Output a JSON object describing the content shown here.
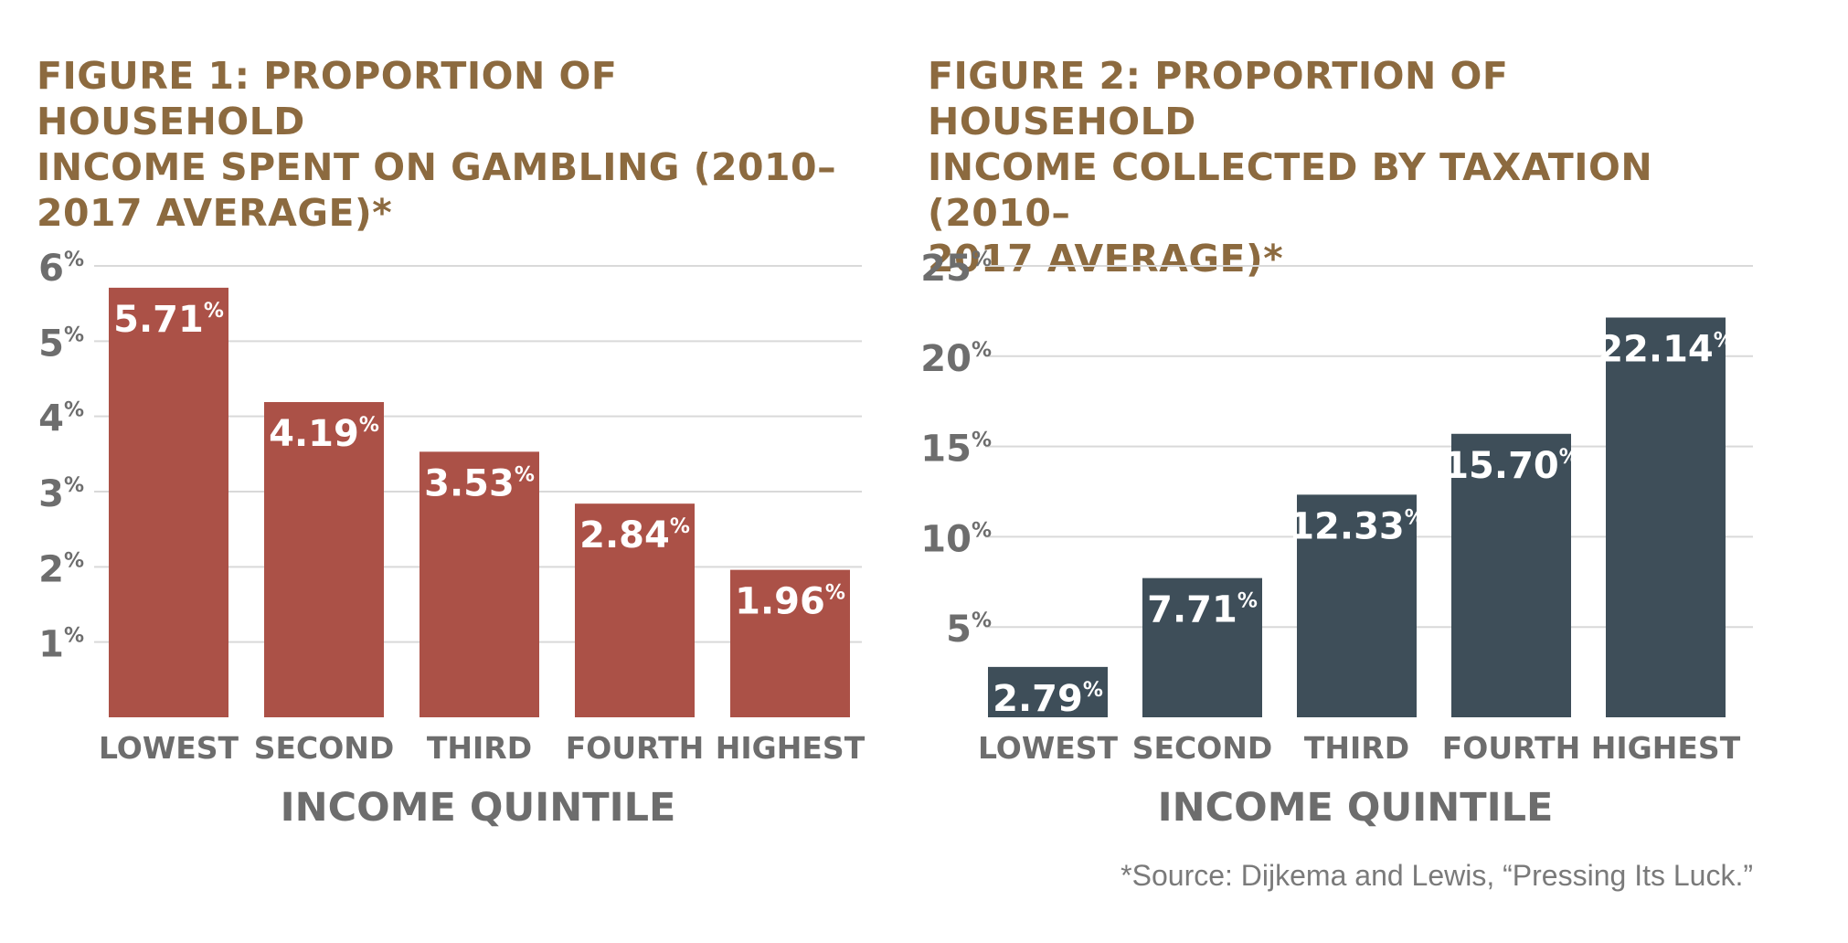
{
  "chart_data": [
    {
      "type": "bar",
      "title": "FIGURE 1: PROPORTION OF HOUSEHOLD\nINCOME SPENT ON GAMBLING (2010–\n2017 AVERAGE)*",
      "xlabel": "INCOME QUINTILE",
      "ylabel": "",
      "categories": [
        "LOWEST",
        "SECOND",
        "THIRD",
        "FOURTH",
        "HIGHEST"
      ],
      "values": [
        5.71,
        4.19,
        3.53,
        2.84,
        1.96
      ],
      "value_labels": [
        "5.71",
        "4.19",
        "3.53",
        "2.84",
        "1.96"
      ],
      "unit": "%",
      "yticks": [
        1,
        2,
        3,
        4,
        5,
        6
      ],
      "ylim": [
        0,
        6
      ],
      "grid": true,
      "bar_color": "#ab5147"
    },
    {
      "type": "bar",
      "title": "FIGURE 2: PROPORTION OF HOUSEHOLD\nINCOME COLLECTED BY TAXATION (2010–\n2017 AVERAGE)*",
      "xlabel": "INCOME QUINTILE",
      "ylabel": "",
      "categories": [
        "LOWEST",
        "SECOND",
        "THIRD",
        "FOURTH",
        "HIGHEST"
      ],
      "values": [
        2.79,
        7.71,
        12.33,
        15.7,
        22.14
      ],
      "value_labels": [
        "2.79",
        "7.71",
        "12.33",
        "15.70",
        "22.14"
      ],
      "unit": "%",
      "yticks": [
        5,
        10,
        15,
        20,
        25
      ],
      "ylim": [
        0,
        25
      ],
      "grid": true,
      "bar_color": "#3e4e59"
    }
  ],
  "source": "*Source: Dijkema and Lewis, “Pressing Its Luck.”",
  "colors": {
    "title": "#8c6a3f",
    "axis_text": "#6d6d6d",
    "gridline": "#d9d9d9",
    "bar_label": "#ffffff"
  }
}
